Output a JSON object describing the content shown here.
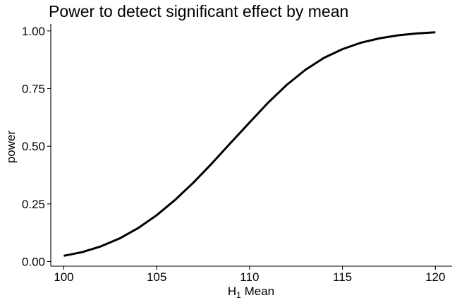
{
  "chart_data": {
    "type": "line",
    "title": "Power to detect significant effect by mean",
    "xlabel": {
      "main": "H",
      "sub": "1",
      "rest": " Mean"
    },
    "ylabel": "power",
    "xlim": [
      99.3,
      120.9
    ],
    "ylim": [
      -0.02,
      1.03
    ],
    "x_ticks": [
      100,
      105,
      110,
      115,
      120
    ],
    "x_tick_labels": [
      "100",
      "105",
      "110",
      "115",
      "120"
    ],
    "y_ticks": [
      0,
      0.25,
      0.5,
      0.75,
      1.0
    ],
    "y_tick_labels": [
      "0.00",
      "0.25",
      "0.50",
      "0.75",
      "1.00"
    ],
    "grid": false,
    "legend": "none",
    "line_color": "#000000",
    "series": [
      {
        "x": [
          100,
          101,
          102,
          103,
          104,
          105,
          106,
          107,
          108,
          109,
          110,
          111,
          112,
          113,
          114,
          115,
          116,
          117,
          118,
          119,
          120
        ],
        "y": [
          0.025,
          0.041,
          0.066,
          0.1,
          0.145,
          0.201,
          0.268,
          0.344,
          0.428,
          0.516,
          0.603,
          0.689,
          0.766,
          0.831,
          0.883,
          0.921,
          0.949,
          0.968,
          0.981,
          0.989,
          0.994
        ]
      }
    ]
  }
}
